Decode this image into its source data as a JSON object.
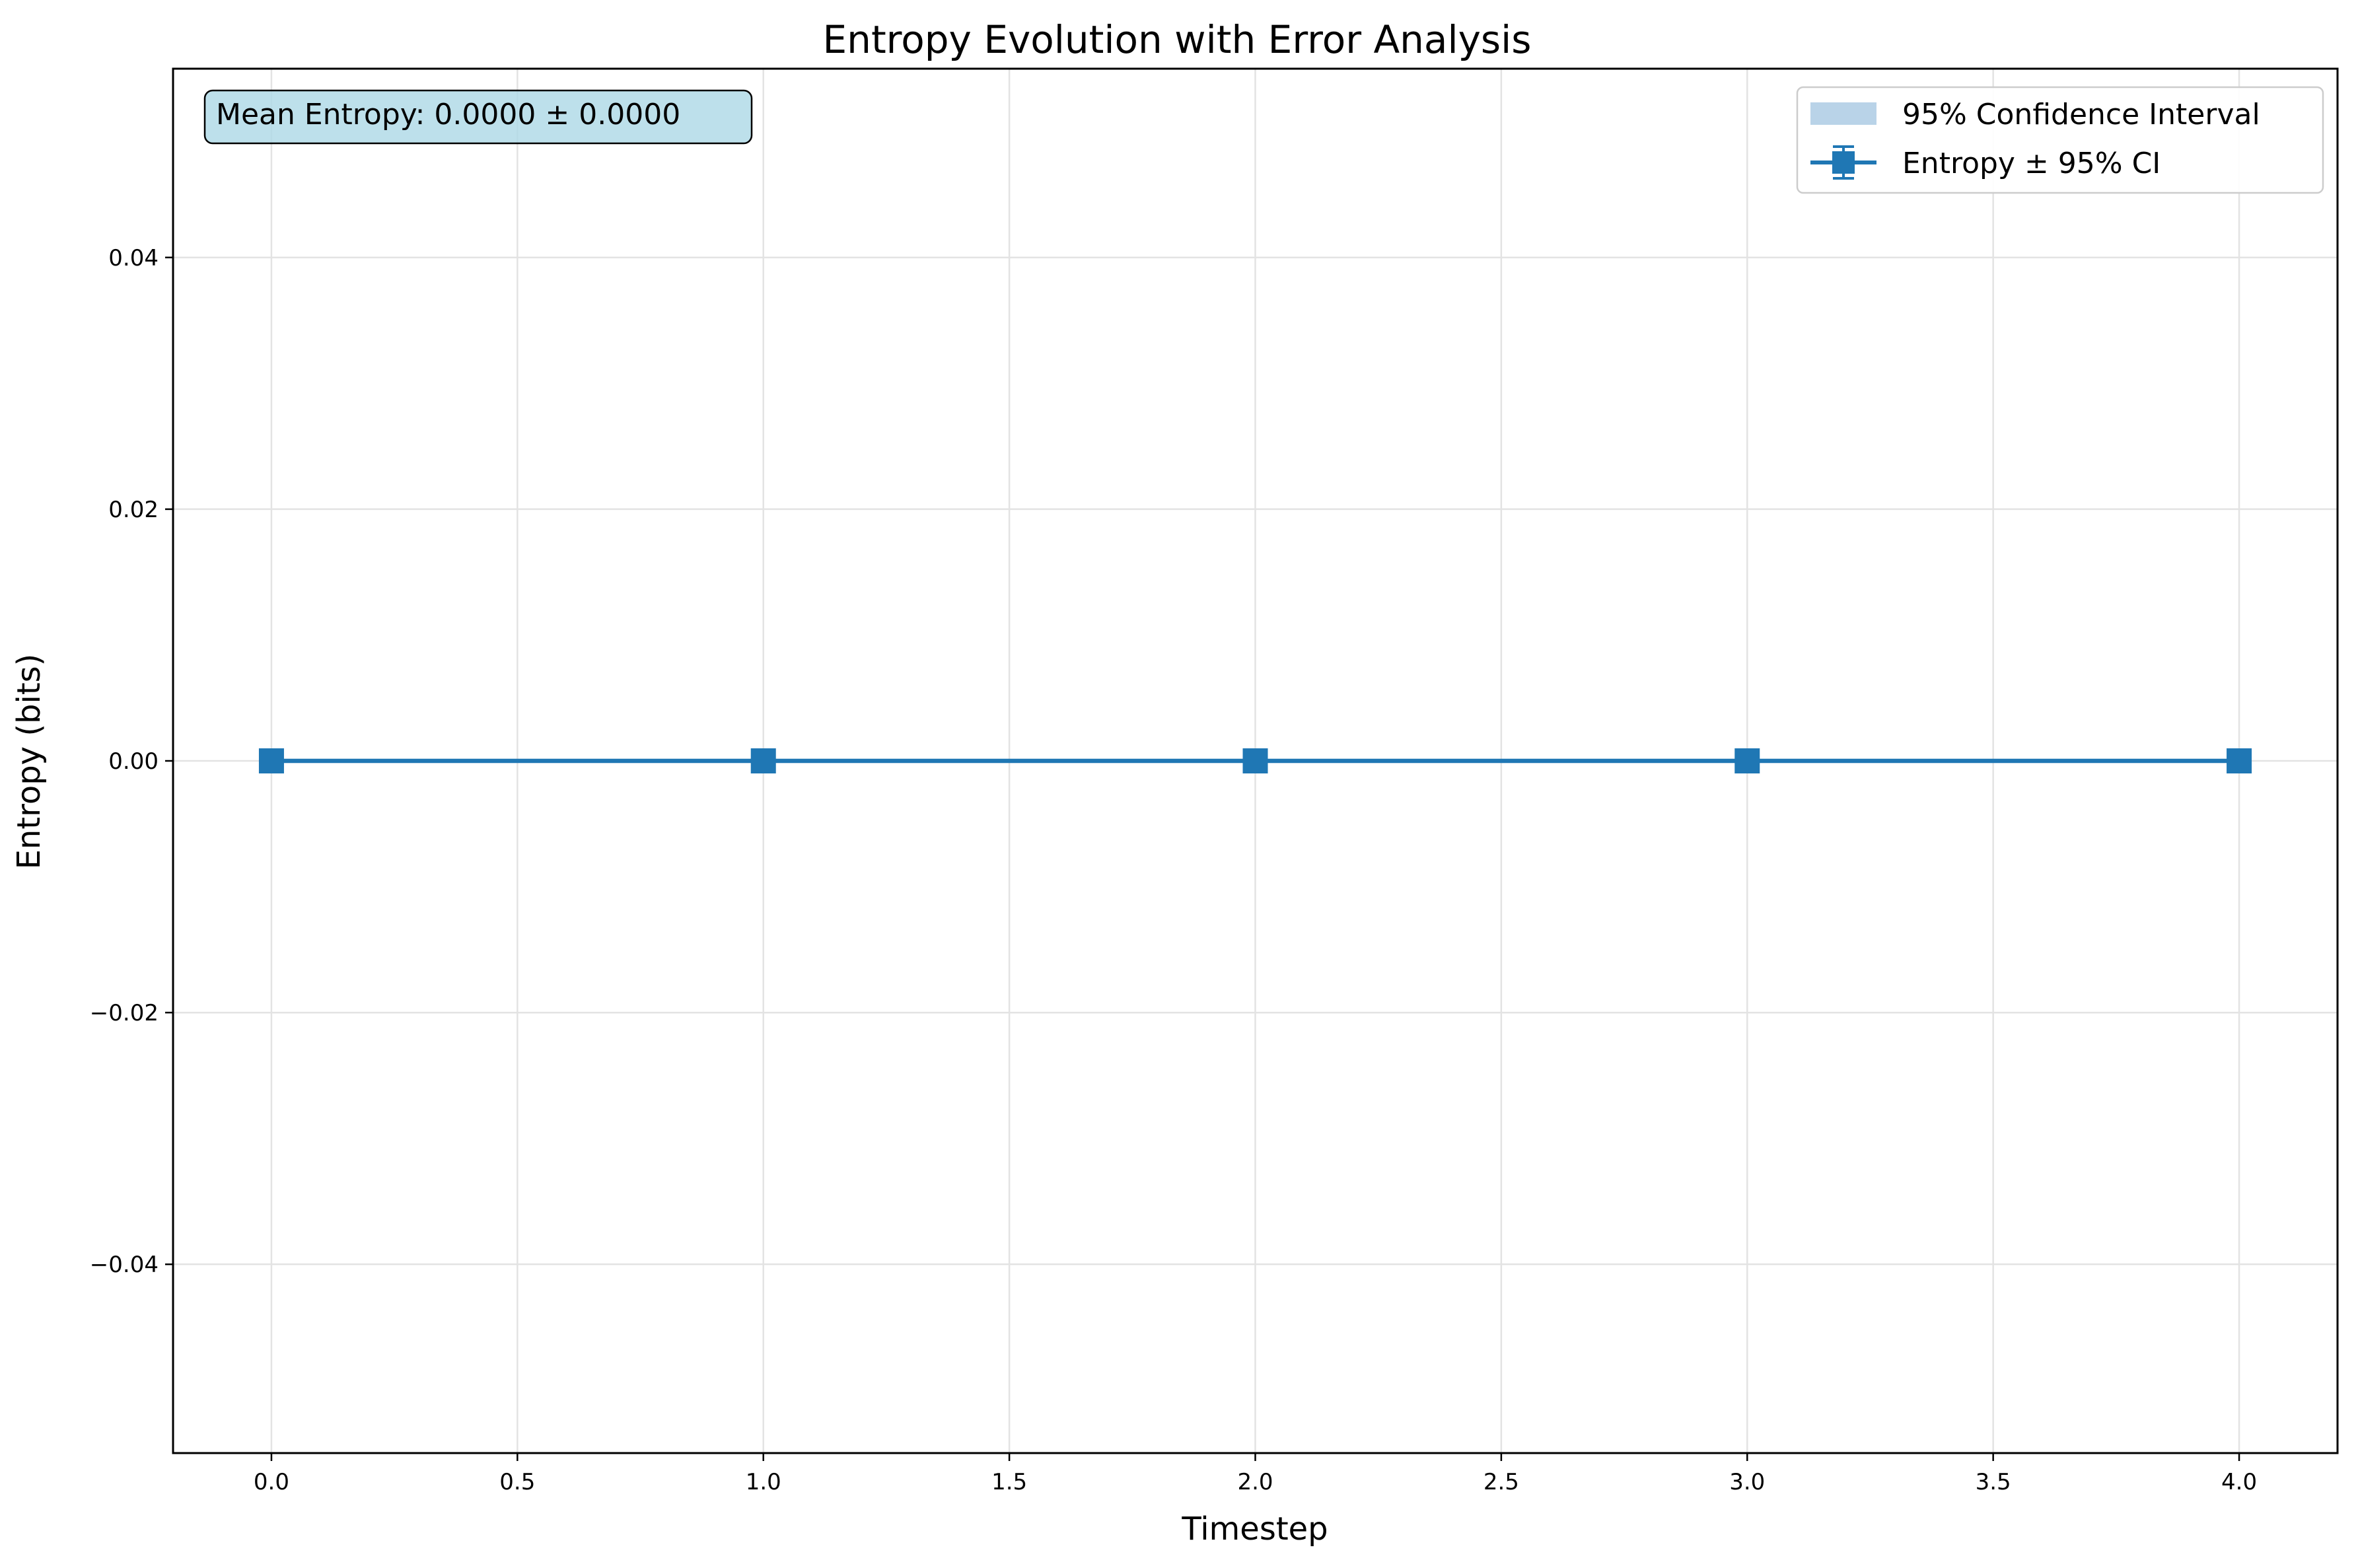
{
  "chart_data": {
    "type": "line",
    "title": "Entropy Evolution with Error Analysis",
    "xlabel": "Timestep",
    "ylabel": "Entropy (bits)",
    "x": [
      0,
      1,
      2,
      3,
      4
    ],
    "series": [
      {
        "name": "Entropy ± 95% CI",
        "values": [
          0,
          0,
          0,
          0,
          0
        ],
        "ci_lower": [
          0,
          0,
          0,
          0,
          0
        ],
        "ci_upper": [
          0,
          0,
          0,
          0,
          0
        ],
        "color": "#1f77b4",
        "marker": "square"
      }
    ],
    "band": {
      "name": "95% Confidence Interval",
      "color": "#b9d3e8"
    },
    "xlim": [
      -0.2,
      4.2
    ],
    "ylim": [
      -0.055,
      0.055
    ],
    "xticks": [
      0,
      0.5,
      1,
      1.5,
      2,
      2.5,
      3,
      3.5,
      4
    ],
    "xtick_labels": [
      "0.0",
      "0.5",
      "1.0",
      "1.5",
      "2.0",
      "2.5",
      "3.0",
      "3.5",
      "4.0"
    ],
    "yticks": [
      -0.04,
      -0.02,
      0,
      0.02,
      0.04
    ],
    "ytick_labels": [
      "−0.04",
      "−0.02",
      "0.00",
      "0.02",
      "0.04"
    ],
    "grid": true,
    "legend_position": "top-right",
    "annotation": {
      "text": "Mean Entropy: 0.0000 ± 0.0000",
      "position": "top-left",
      "background": "#add8e6"
    }
  }
}
